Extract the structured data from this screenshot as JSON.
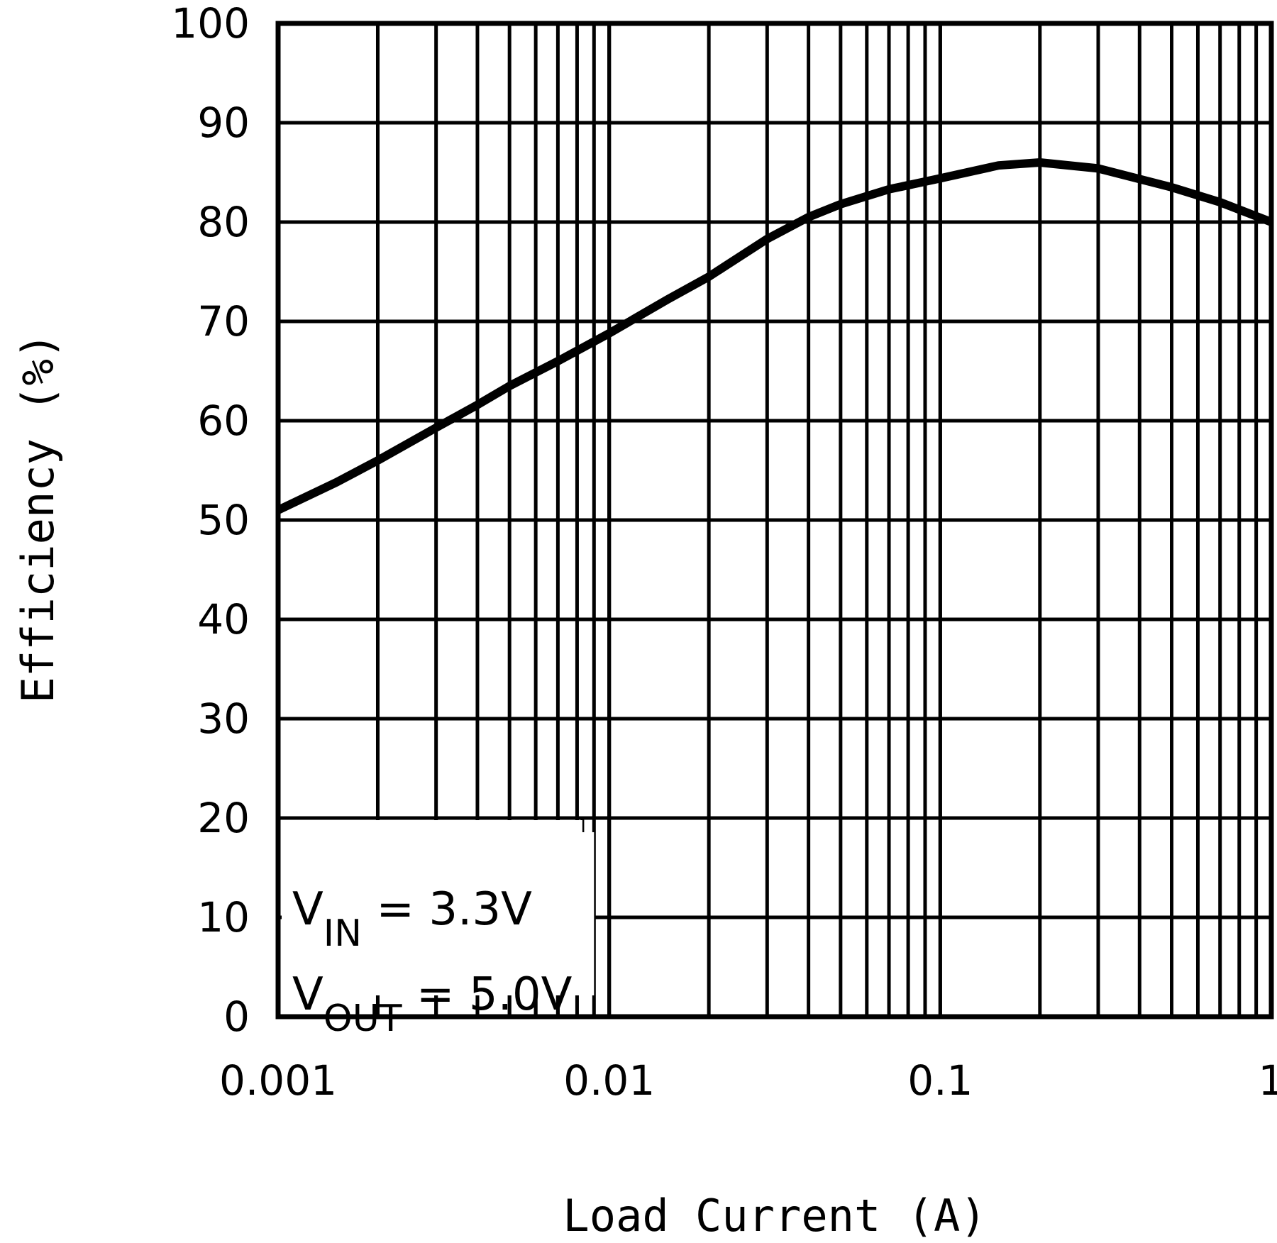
{
  "chart_data": {
    "type": "line",
    "title": "",
    "xlabel": "Load Current (A)",
    "ylabel": "Efficiency (%)",
    "xscale": "log",
    "xlim": [
      0.001,
      1
    ],
    "ylim": [
      0,
      100
    ],
    "grid": true,
    "x_tick_labels": [
      "0.001",
      "0.01",
      "0.1",
      "1"
    ],
    "y_tick_labels": [
      "0",
      "10",
      "20",
      "30",
      "40",
      "50",
      "60",
      "70",
      "80",
      "90",
      "100"
    ],
    "annotations": [
      {
        "main": "V",
        "sub": "IN",
        "rest": " = 3.3V"
      },
      {
        "main": "V",
        "sub": "OUT",
        "rest": " = 5.0V"
      }
    ],
    "series": [
      {
        "name": "Efficiency",
        "x": [
          0.001,
          0.0015,
          0.002,
          0.003,
          0.004,
          0.005,
          0.007,
          0.01,
          0.015,
          0.02,
          0.03,
          0.04,
          0.05,
          0.07,
          0.1,
          0.15,
          0.2,
          0.3,
          0.5,
          0.7,
          1.0
        ],
        "y": [
          51.0,
          53.8,
          56.0,
          59.3,
          61.6,
          63.5,
          66.0,
          68.8,
          72.2,
          74.5,
          78.3,
          80.5,
          81.8,
          83.3,
          84.4,
          85.7,
          86.0,
          85.4,
          83.5,
          82.0,
          80.0
        ]
      }
    ]
  }
}
